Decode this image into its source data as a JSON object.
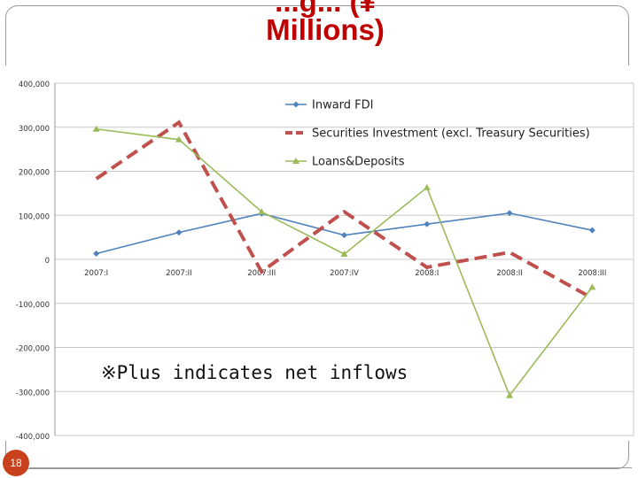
{
  "slide": {
    "title_line1": "...g... (¥",
    "title_line2": "Millions)",
    "page_number": "18",
    "note": "※Plus indicates net inflows"
  },
  "chart_data": {
    "type": "line",
    "title": "",
    "xlabel": "",
    "ylabel": "",
    "ylim": [
      -400000,
      400000
    ],
    "yticks": [
      "400,000",
      "300,000",
      "200,000",
      "100,000",
      "0",
      "-100,000",
      "-200,000",
      "-300,000",
      "-400,000"
    ],
    "ytick_values": [
      400000,
      300000,
      200000,
      100000,
      0,
      -100000,
      -200000,
      -300000,
      -400000
    ],
    "categories": [
      "2007:I",
      "2007:II",
      "2007:III",
      "2007:IV",
      "2008:I",
      "2008:II",
      "2008:III"
    ],
    "grid": true,
    "legend_position": "top-right",
    "series": [
      {
        "name": "Inward FDI",
        "color": "#4f81bd",
        "style": "solid-diamond",
        "values": [
          13000,
          61000,
          104000,
          55000,
          80000,
          105000,
          66000
        ]
      },
      {
        "name": "Securities Investment (excl. Treasury Securities)",
        "color": "#c0504d",
        "style": "dashed",
        "values": [
          183000,
          311000,
          -28000,
          108000,
          -18000,
          16000,
          -88000
        ]
      },
      {
        "name": "Loans&Deposits",
        "color": "#9bbb59",
        "style": "solid-triangle",
        "values": [
          296000,
          272000,
          108000,
          12000,
          163000,
          -309000,
          -63000
        ]
      }
    ]
  }
}
